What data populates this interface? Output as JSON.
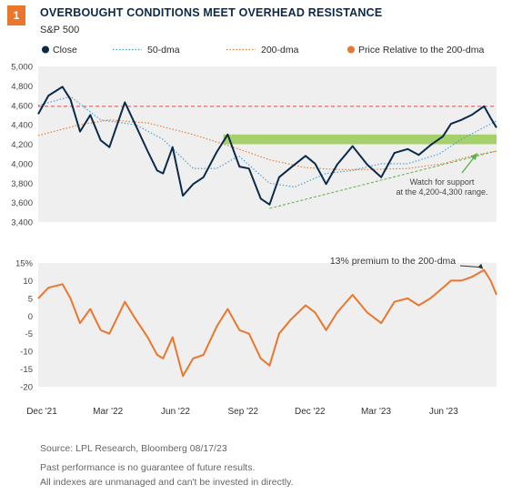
{
  "header": {
    "badge": "1",
    "title": "OVERBOUGHT CONDITIONS MEET OVERHEAD RESISTANCE",
    "subtitle": "S&P 500"
  },
  "colors": {
    "close": "#0b2a4a",
    "dma50": "#3aa0d8",
    "dma200": "#e9772e",
    "relative": "#e9772e",
    "resistance": "#8cc63f",
    "support": "#5fb14a",
    "ref": "#e04b4b",
    "plot_bg": "#efefef",
    "badge": "#e9772e"
  },
  "legend": [
    {
      "label": "Close",
      "style": "dot",
      "color": "#0b2a4a"
    },
    {
      "label": "50-dma",
      "style": "dotted",
      "color": "#3aa0d8"
    },
    {
      "label": "200-dma",
      "style": "dotted",
      "color": "#e9772e"
    },
    {
      "label": "Price Relative to the 200-dma",
      "style": "dot",
      "color": "#e9772e"
    }
  ],
  "annotations": {
    "support": [
      "Watch for support",
      "at the 4,200-4,300 range."
    ],
    "premium": "13% premium to the 200-dma"
  },
  "footer": {
    "source": "Source: LPL Research, Bloomberg 08/17/23",
    "disclaimer1": "Past performance is no guarantee of future results.",
    "disclaimer2": "All indexes are unmanaged and can't be invested in directly."
  },
  "chart_data": [
    {
      "type": "line",
      "title": "S&P 500",
      "x_ticks": [
        "Dec '21",
        "Mar '22",
        "Jun '22",
        "Sep '22",
        "Dec '22",
        "Mar '23",
        "Jun '23"
      ],
      "xlim": [
        "2021-12-01",
        "2023-08-17"
      ],
      "ylim": [
        3400,
        5000
      ],
      "y_ticks": [
        "3,400",
        "3,600",
        "3,800",
        "4,000",
        "4,200",
        "4,400",
        "4,600",
        "4,800",
        "5,000"
      ],
      "resistance_band": [
        4200,
        4300
      ],
      "reference_line": 4590,
      "support_line": {
        "from": [
          "2022-10-12",
          3540
        ],
        "to": [
          "2023-08-17",
          4130
        ]
      },
      "series": [
        {
          "name": "Close",
          "x": [
            "2021-12-01",
            "2021-12-15",
            "2022-01-03",
            "2022-01-14",
            "2022-01-27",
            "2022-02-10",
            "2022-02-24",
            "2022-03-08",
            "2022-03-29",
            "2022-04-13",
            "2022-04-29",
            "2022-05-12",
            "2022-05-20",
            "2022-06-02",
            "2022-06-16",
            "2022-06-30",
            "2022-07-14",
            "2022-08-01",
            "2022-08-16",
            "2022-09-01",
            "2022-09-14",
            "2022-09-30",
            "2022-10-12",
            "2022-10-25",
            "2022-11-10",
            "2022-11-30",
            "2022-12-13",
            "2022-12-28",
            "2023-01-12",
            "2023-02-02",
            "2023-02-22",
            "2023-03-13",
            "2023-03-31",
            "2023-04-18",
            "2023-05-03",
            "2023-05-19",
            "2023-06-05",
            "2023-06-16",
            "2023-06-30",
            "2023-07-14",
            "2023-07-31",
            "2023-08-09",
            "2023-08-17"
          ],
          "values": [
            4510,
            4700,
            4790,
            4660,
            4330,
            4500,
            4240,
            4170,
            4630,
            4390,
            4130,
            3930,
            3900,
            4170,
            3670,
            3790,
            3860,
            4120,
            4300,
            3970,
            3950,
            3640,
            3580,
            3860,
            3960,
            4080,
            4000,
            3790,
            3990,
            4180,
            3990,
            3860,
            4110,
            4150,
            4090,
            4190,
            4280,
            4410,
            4450,
            4500,
            4590,
            4470,
            4370
          ]
        },
        {
          "name": "50-dma",
          "x": [
            "2021-12-01",
            "2022-01-14",
            "2022-02-24",
            "2022-04-13",
            "2022-05-20",
            "2022-06-30",
            "2022-08-01",
            "2022-08-31",
            "2022-10-12",
            "2022-11-15",
            "2022-12-28",
            "2023-02-01",
            "2023-03-13",
            "2023-04-18",
            "2023-05-31",
            "2023-06-30",
            "2023-08-17"
          ],
          "values": [
            4600,
            4690,
            4450,
            4400,
            4250,
            3950,
            3950,
            4080,
            3800,
            3760,
            3900,
            3930,
            4000,
            4000,
            4100,
            4250,
            4440
          ]
        },
        {
          "name": "200-dma",
          "x": [
            "2021-12-01",
            "2022-01-27",
            "2022-03-08",
            "2022-04-29",
            "2022-06-30",
            "2022-08-31",
            "2022-10-12",
            "2022-11-30",
            "2023-01-12",
            "2023-02-22",
            "2023-04-18",
            "2023-06-05",
            "2023-07-14",
            "2023-08-17"
          ],
          "values": [
            4290,
            4400,
            4450,
            4420,
            4300,
            4150,
            4040,
            3960,
            3940,
            3940,
            3950,
            4000,
            4080,
            4130
          ]
        }
      ]
    },
    {
      "type": "line",
      "title": "",
      "xlim": [
        "2021-12-01",
        "2023-08-17"
      ],
      "ylim": [
        -20,
        15
      ],
      "y_ticks": [
        "-20",
        "-15",
        "-10",
        "-5",
        "0",
        "5",
        "10",
        "15%"
      ],
      "series": [
        {
          "name": "Price Relative to the 200-dma",
          "x": [
            "2021-12-01",
            "2021-12-15",
            "2022-01-03",
            "2022-01-14",
            "2022-01-27",
            "2022-02-10",
            "2022-02-24",
            "2022-03-08",
            "2022-03-29",
            "2022-04-13",
            "2022-04-29",
            "2022-05-12",
            "2022-05-20",
            "2022-06-02",
            "2022-06-16",
            "2022-06-30",
            "2022-07-14",
            "2022-08-01",
            "2022-08-16",
            "2022-09-01",
            "2022-09-14",
            "2022-09-30",
            "2022-10-12",
            "2022-10-25",
            "2022-11-10",
            "2022-11-30",
            "2022-12-13",
            "2022-12-28",
            "2023-01-12",
            "2023-02-02",
            "2023-02-22",
            "2023-03-13",
            "2023-03-31",
            "2023-04-18",
            "2023-05-03",
            "2023-05-19",
            "2023-06-05",
            "2023-06-16",
            "2023-06-30",
            "2023-07-14",
            "2023-07-31",
            "2023-08-09",
            "2023-08-17"
          ],
          "values": [
            5,
            8,
            9,
            5,
            -2,
            2,
            -4,
            -5,
            4,
            -1,
            -6,
            -11,
            -12,
            -6,
            -17,
            -12,
            -11,
            -3,
            2,
            -4,
            -5,
            -12,
            -14,
            -5,
            -1,
            3,
            1,
            -4,
            1,
            6,
            1,
            -2,
            4,
            5,
            3,
            5,
            8,
            10,
            10,
            11,
            13,
            10,
            6
          ]
        }
      ]
    }
  ]
}
